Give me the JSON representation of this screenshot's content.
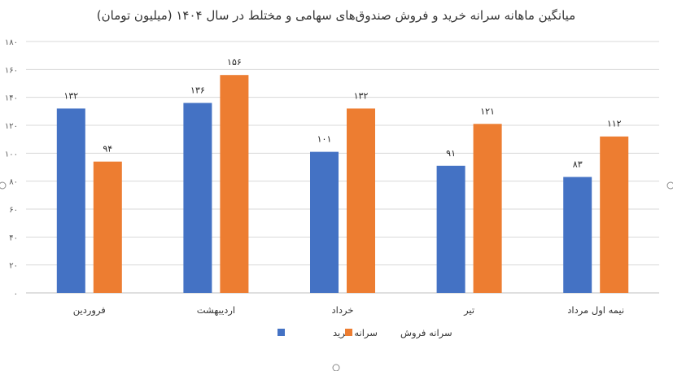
{
  "chart_data": {
    "type": "bar",
    "title": "میانگین ماهانه سرانه خرید و فروش صندوق‌های سهامی و مختلط در سال ۱۴۰۴ (میلیون تومان)",
    "categories": [
      "فروردین",
      "اردیبهشت",
      "خرداد",
      "تیر",
      "نیمه اول مرداد"
    ],
    "series": [
      {
        "name": "سرانه خرید",
        "values": [
          132,
          136,
          101,
          91,
          83
        ],
        "labels": [
          "۱۳۲",
          "۱۳۶",
          "۱۰۱",
          "۹۱",
          "۸۳"
        ],
        "color": "#4472C4"
      },
      {
        "name": "سرانه فروش",
        "values": [
          94,
          156,
          132,
          121,
          112
        ],
        "labels": [
          "۹۴",
          "۱۵۶",
          "۱۳۲",
          "۱۲۱",
          "۱۱۲"
        ],
        "color": "#ED7D31"
      }
    ],
    "ylim": [
      0,
      180
    ],
    "yticks": [
      0,
      20,
      40,
      60,
      80,
      100,
      120,
      140,
      160,
      180
    ],
    "ytick_labels": [
      "۰",
      "۲۰",
      "۴۰",
      "۶۰",
      "۸۰",
      "۱۰۰",
      "۱۲۰",
      "۱۴۰",
      "۱۶۰",
      "۱۸۰"
    ],
    "grid": true,
    "legend": "bottom",
    "xlabel": "",
    "ylabel": ""
  }
}
